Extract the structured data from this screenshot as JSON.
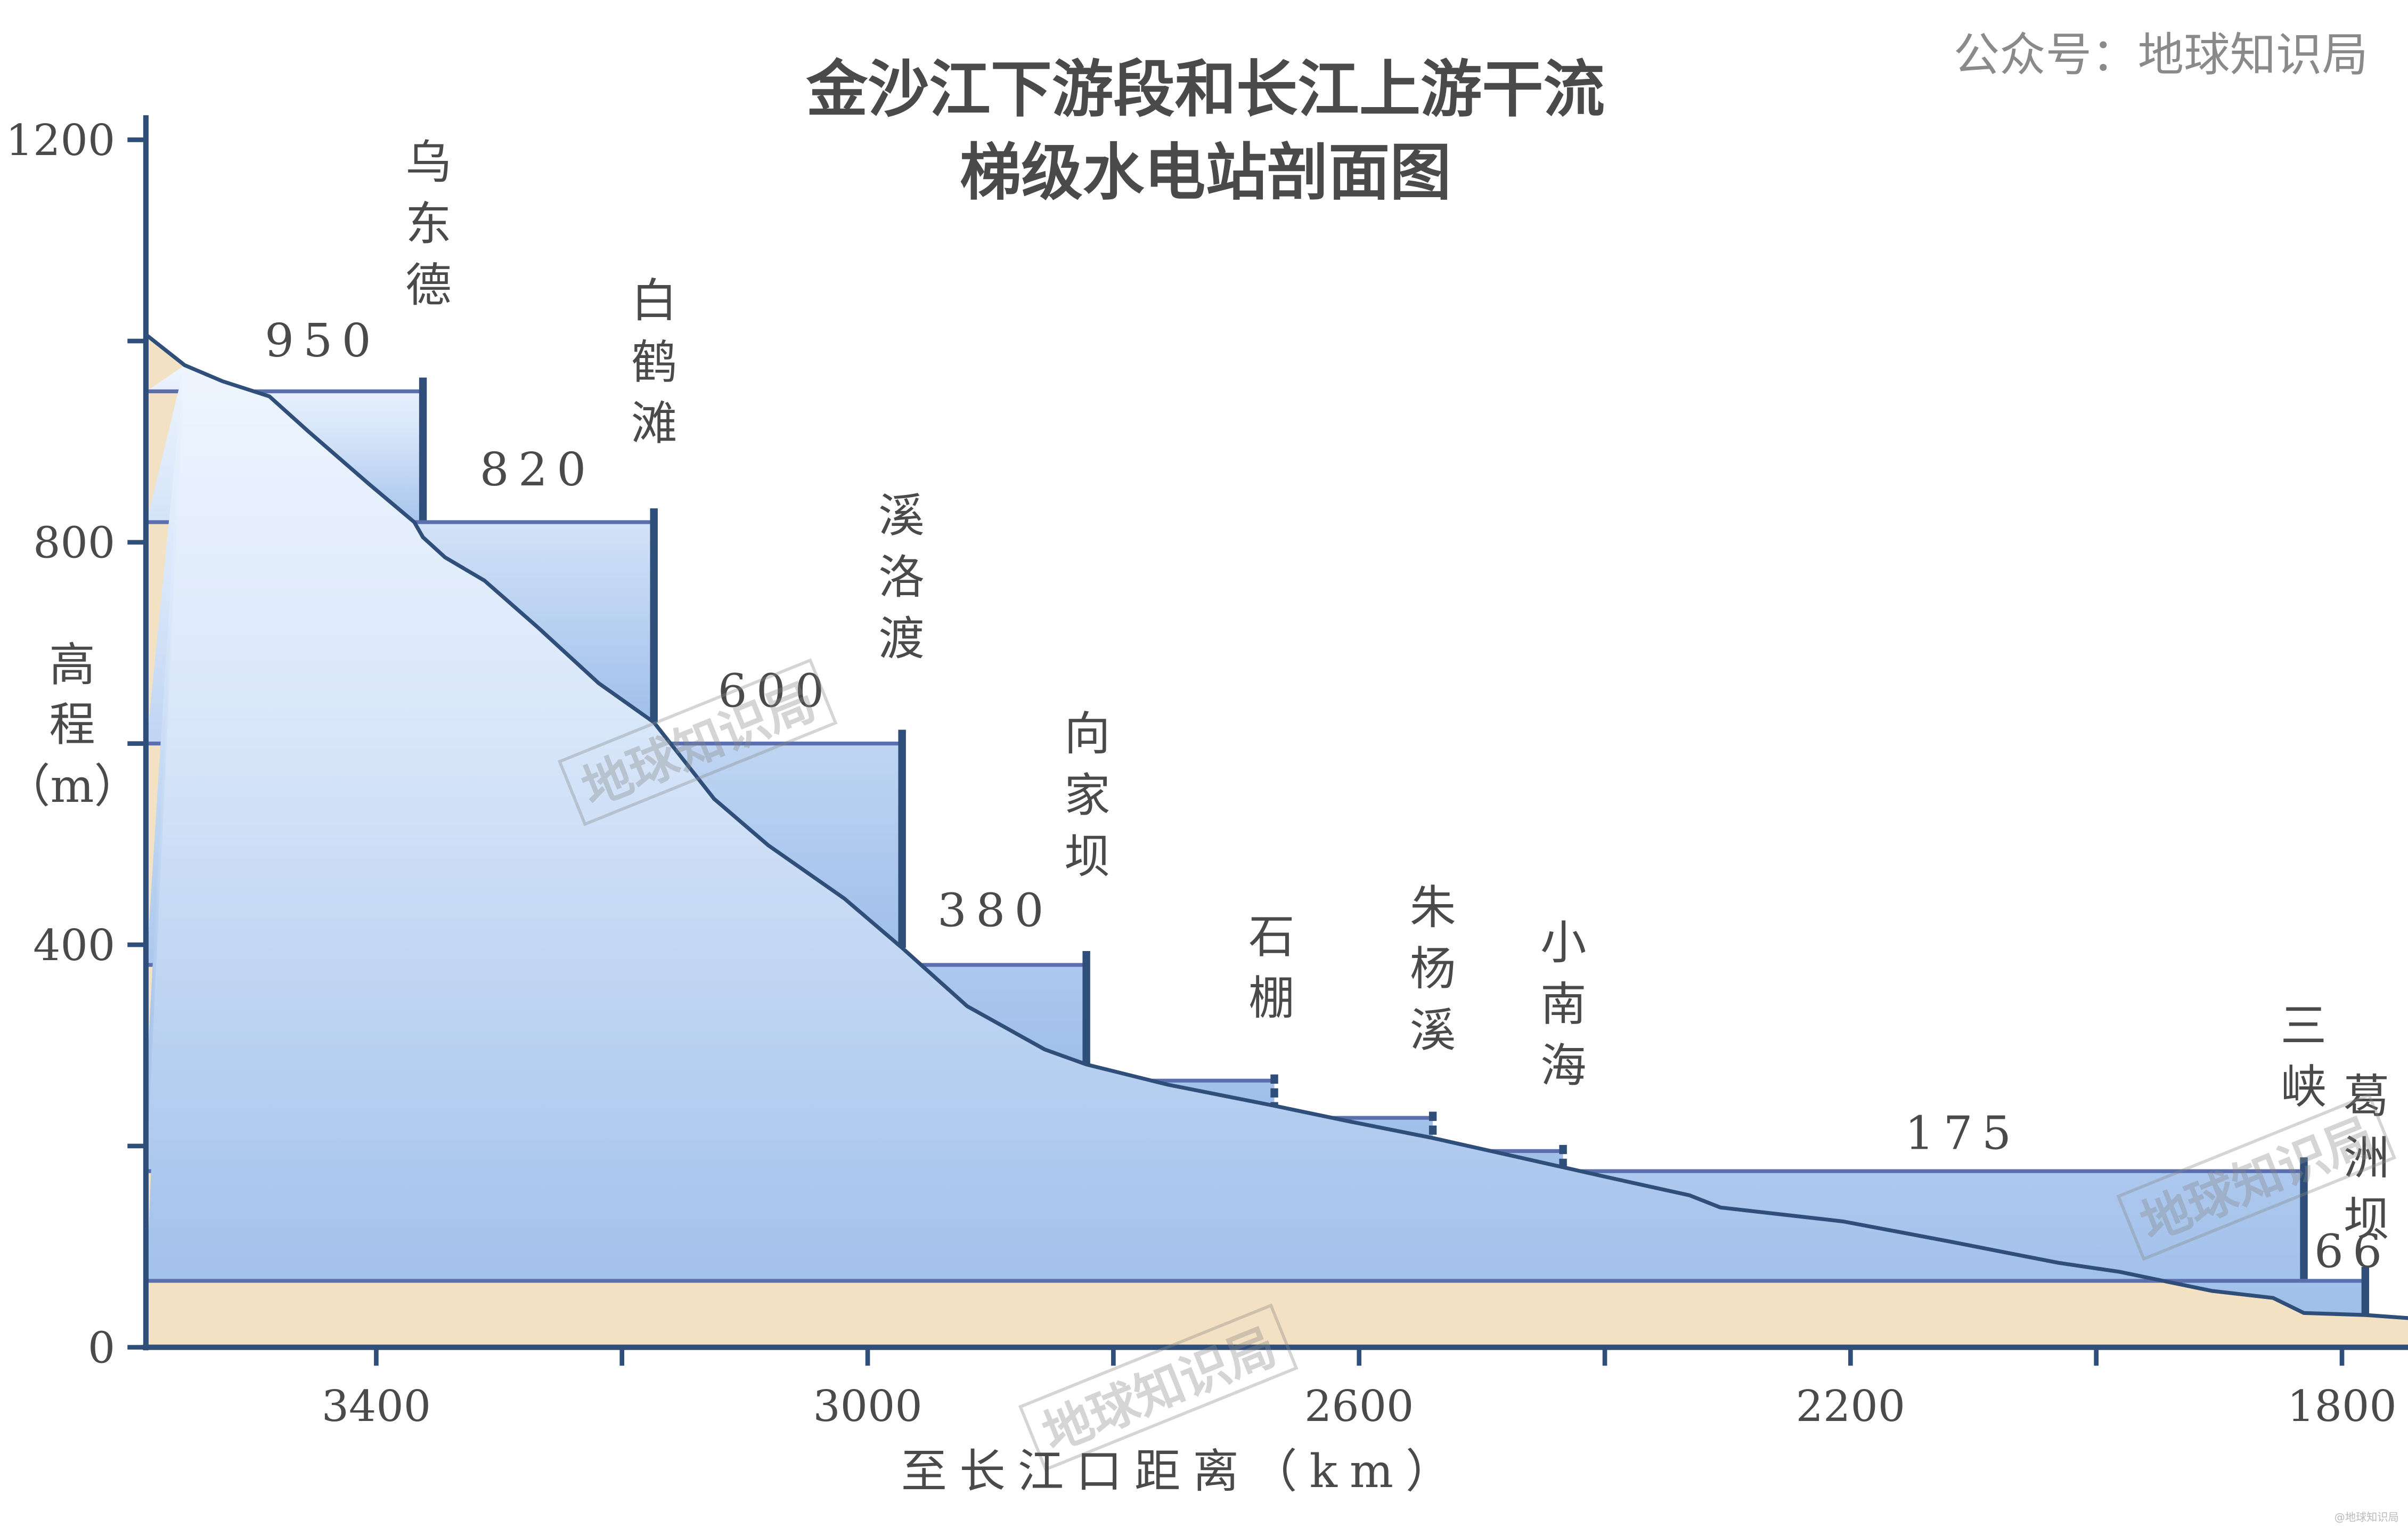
{
  "chart_data": {
    "type": "area",
    "title": [
      "金沙江下游段和长江上游干流",
      "梯级水电站剖面图"
    ],
    "credit": "公众号：地球知识局",
    "watermark": "地球知识局",
    "corner_watermark": "@地球知识局",
    "xlabel": "至长江口距离（km）",
    "ylabel": [
      "高",
      "程",
      "（m）"
    ],
    "xlim": [
      3587,
      1746
    ],
    "ylim": [
      0,
      1200
    ],
    "x_ticks": [
      3400,
      3200,
      3000,
      2800,
      2600,
      2400,
      2200,
      2000,
      1800
    ],
    "x_tick_labels": [
      "3400",
      "3000",
      "2600",
      "2200",
      "1800"
    ],
    "y_ticks": [
      0,
      200,
      400,
      600,
      800,
      1000,
      1200
    ],
    "y_tick_labels": [
      "0",
      "400",
      "800",
      "1200"
    ],
    "riverbed": [
      [
        3587,
        1006
      ],
      [
        3556,
        976
      ],
      [
        3525,
        960
      ],
      [
        3487,
        945
      ],
      [
        3456,
        911
      ],
      [
        3406,
        858
      ],
      [
        3369,
        820
      ],
      [
        3362,
        805
      ],
      [
        3344,
        785
      ],
      [
        3312,
        762
      ],
      [
        3269,
        716
      ],
      [
        3219,
        660
      ],
      [
        3174,
        621
      ],
      [
        3125,
        545
      ],
      [
        3081,
        499
      ],
      [
        3019,
        446
      ],
      [
        2972,
        397
      ],
      [
        2919,
        339
      ],
      [
        2856,
        296
      ],
      [
        2822,
        281
      ],
      [
        2756,
        261
      ],
      [
        2669,
        240
      ],
      [
        2606,
        224
      ],
      [
        2540,
        208
      ],
      [
        2434,
        179
      ],
      [
        2394,
        168
      ],
      [
        2331,
        151
      ],
      [
        2306,
        139
      ],
      [
        2206,
        125
      ],
      [
        2119,
        105
      ],
      [
        2031,
        84
      ],
      [
        1981,
        75
      ],
      [
        1906,
        56
      ],
      [
        1856,
        49
      ],
      [
        1831,
        34
      ],
      [
        1781,
        32
      ],
      [
        1746,
        29
      ]
    ],
    "dams": [
      {
        "name": "乌东德",
        "km": 3362,
        "level": 950,
        "level_label": "950",
        "planned": false
      },
      {
        "name": "白鹤滩",
        "km": 3174,
        "level": 820,
        "level_label": "820",
        "planned": false
      },
      {
        "name": "溪洛渡",
        "km": 2972,
        "level": 600,
        "level_label": "600",
        "planned": false
      },
      {
        "name": "向家坝",
        "km": 2822,
        "level": 380,
        "level_label": "380",
        "planned": false
      },
      {
        "name": "石棚",
        "km": 2669,
        "level": 265,
        "level_label": "",
        "planned": true
      },
      {
        "name": "朱杨溪",
        "km": 2540,
        "level": 228,
        "level_label": "",
        "planned": true
      },
      {
        "name": "小南海",
        "km": 2434,
        "level": 195,
        "level_label": "",
        "planned": true
      },
      {
        "name": "三峡",
        "km": 1831,
        "level": 175,
        "level_label": "175",
        "planned": false
      },
      {
        "name": "葛洲坝",
        "km": 1781,
        "level": 66,
        "level_label": "66",
        "planned": false
      }
    ],
    "colors": {
      "terrain": "#f3e1c4",
      "line": "#2f4f7a",
      "water_top": "#e6f0fc",
      "water_bottom": "#a8c6ec",
      "surface": "#5b6fae",
      "text": "#4a4a4a"
    }
  }
}
